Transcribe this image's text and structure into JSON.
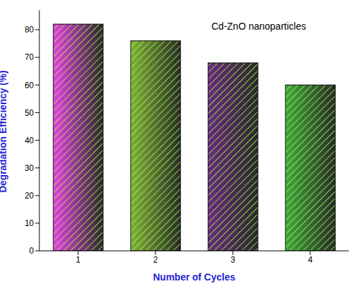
{
  "chart_data": {
    "type": "bar",
    "title": "Cd-ZnO nanoparticles",
    "x_label": "Number of Cycles",
    "y_label": "Degradation Efficiency (%)",
    "categories": [
      "1",
      "2",
      "3",
      "4"
    ],
    "values": [
      82,
      76,
      68,
      60
    ],
    "colors": [
      "#e83ee8",
      "#7fb03a",
      "#6a2a80",
      "#3fa83f"
    ],
    "ylim": [
      0,
      87
    ],
    "yticks": [
      0,
      10,
      20,
      30,
      40,
      50,
      60,
      70,
      80
    ],
    "grid": false
  }
}
